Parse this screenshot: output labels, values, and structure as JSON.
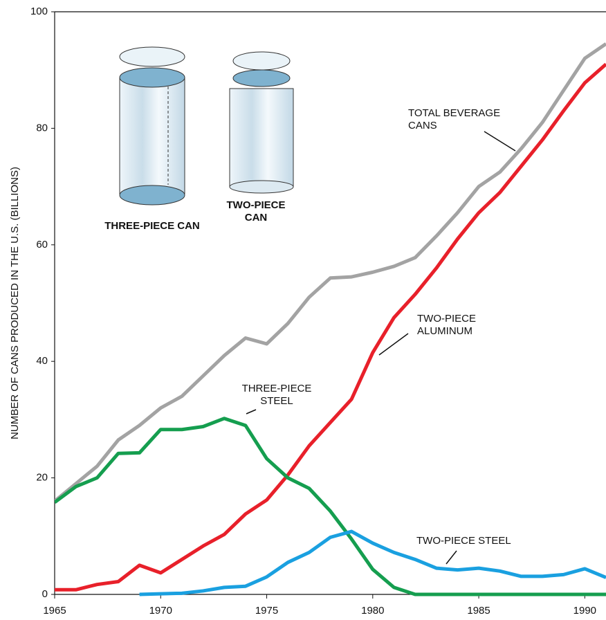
{
  "chart_data": {
    "type": "line",
    "y_label": "NUMBER OF CANS PRODUCED IN THE U.S. (BILLIONS)",
    "x": [
      1965,
      1966,
      1967,
      1968,
      1969,
      1970,
      1971,
      1972,
      1973,
      1974,
      1975,
      1976,
      1977,
      1978,
      1979,
      1980,
      1981,
      1982,
      1983,
      1984,
      1985,
      1986,
      1987,
      1988,
      1989,
      1990,
      1991
    ],
    "series": [
      {
        "name": "TOTAL BEVERAGE CANS",
        "color": "#a3a3a3",
        "values": [
          16,
          19,
          22,
          26.5,
          29,
          32,
          34,
          37.5,
          41,
          44,
          43,
          46.5,
          51,
          54.3,
          54.5,
          55.3,
          56.3,
          57.8,
          61.5,
          65.5,
          70,
          72.5,
          76.5,
          81,
          86.5,
          92,
          94.5
        ]
      },
      {
        "name": "TWO-PIECE ALUMINUM",
        "color": "#e8202a",
        "values": [
          0.8,
          0.8,
          1.7,
          2.2,
          5,
          3.7,
          6,
          8.3,
          10.3,
          13.8,
          16.2,
          20.5,
          25.5,
          29.5,
          33.5,
          41.5,
          47.5,
          51.5,
          56,
          61,
          65.5,
          69,
          73.5,
          78,
          83,
          87.8,
          91
        ]
      },
      {
        "name": "THREE-PIECE STEEL",
        "color": "#159e4f",
        "values": [
          15.8,
          18.5,
          20,
          24.2,
          24.3,
          28.3,
          28.3,
          28.8,
          30.2,
          29,
          23.3,
          20,
          18.2,
          14.3,
          9.5,
          4.3,
          1.2,
          0,
          0,
          0,
          0,
          0,
          0,
          0,
          0,
          0,
          0
        ]
      },
      {
        "name": "TWO-PIECE STEEL",
        "color": "#1aa0e0",
        "values": [
          null,
          null,
          null,
          null,
          0,
          0.1,
          0.2,
          0.6,
          1.2,
          1.4,
          3,
          5.5,
          7.2,
          9.8,
          10.8,
          8.8,
          7.2,
          6,
          4.5,
          4.2,
          4.5,
          4,
          3.1,
          3.1,
          3.4,
          4.4,
          2.9
        ]
      }
    ],
    "xlim": [
      1965,
      1991
    ],
    "xticks": [
      1965,
      1970,
      1975,
      1980,
      1985,
      1990
    ],
    "ylim": [
      0,
      100
    ],
    "yticks": [
      0,
      20,
      40,
      60,
      80,
      100
    ],
    "illustration_labels": [
      "THREE-PIECE CAN",
      "TWO-PIECE CAN"
    ]
  }
}
